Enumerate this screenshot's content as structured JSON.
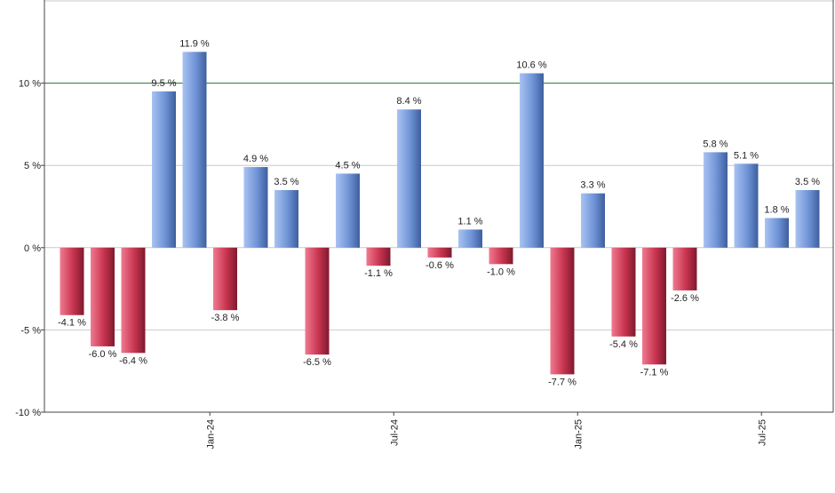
{
  "chart_data": {
    "type": "bar",
    "title": "",
    "xlabel": "",
    "ylabel": "",
    "ylim": [
      -10,
      15
    ],
    "y_ticks": [
      -10,
      -5,
      0,
      5,
      10
    ],
    "y_tick_labels": [
      "-10 %",
      "-5 %",
      "0 %",
      "5 %",
      "10 %"
    ],
    "x_tick_labels": [
      {
        "label": "Jan-24",
        "after_index": 5
      },
      {
        "label": "Jul-24",
        "after_index": 11
      },
      {
        "label": "Jan-25",
        "after_index": 17
      },
      {
        "label": "Jul-25",
        "after_index": 23
      }
    ],
    "reference_line": {
      "value": 10,
      "color": "#2e7d32"
    },
    "grid": true,
    "legend": "none",
    "value_suffix": " %",
    "colors": {
      "positive": "#6f93d6",
      "negative": "#c8344f"
    },
    "values": [
      -4.1,
      -6.0,
      -6.4,
      9.5,
      11.9,
      -3.8,
      4.9,
      3.5,
      -6.5,
      4.5,
      -1.1,
      8.4,
      -0.6,
      1.1,
      -1.0,
      10.6,
      -7.7,
      3.3,
      -5.4,
      -7.1,
      -2.6,
      5.8,
      5.1,
      1.8,
      3.5
    ]
  }
}
